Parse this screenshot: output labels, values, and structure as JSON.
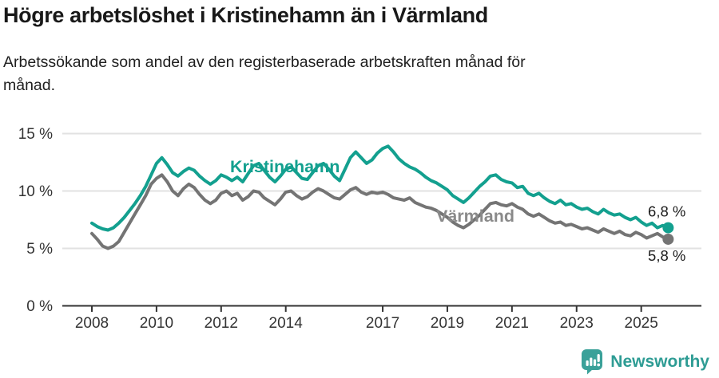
{
  "header": {
    "subtitle_line1": "Arbetssökande som andel av den registerbaserade arbetskraften månad för",
    "subtitle_line2": "månad."
  },
  "footer": {
    "brand": "Newsworthy",
    "brand_color": "#2e9c94",
    "icon": "newsworthy-bar-chart-bubble-icon",
    "icon_color": "#3aa199"
  },
  "chart_data": {
    "type": "line",
    "title": "Högre arbetslöshet i Kristinehamn än i Värmland",
    "subtitle": "Arbetssökande som andel av den registerbaserade arbetskraften månad för månad.",
    "unit": "%",
    "grid": true,
    "legend_position": "inline",
    "x_start": 2008.0,
    "x_step": 0.166667,
    "x_ticks": [
      2008,
      2010,
      2012,
      2014,
      2017,
      2019,
      2021,
      2023,
      2025
    ],
    "y_ticks": [
      {
        "value": 0,
        "label": "0 %"
      },
      {
        "value": 5,
        "label": "5 %"
      },
      {
        "value": 10,
        "label": "10 %"
      },
      {
        "value": 15,
        "label": "15 %"
      }
    ],
    "ylim": [
      0,
      16
    ],
    "axis_color": "#333333",
    "grid_color": "#e2e2e2",
    "tick_label_color": "#333333",
    "value_label_color": "#1d1d1d",
    "series": [
      {
        "name": "Värmland",
        "color": "#747474",
        "label_color": "#8a8a8a",
        "end_label": "5,8 %",
        "end_value": 5.8,
        "values": [
          6.3,
          5.8,
          5.2,
          5.0,
          5.2,
          5.6,
          6.4,
          7.2,
          8.0,
          8.8,
          9.6,
          10.6,
          11.1,
          11.4,
          10.8,
          10.0,
          9.6,
          10.2,
          10.6,
          10.3,
          9.7,
          9.2,
          8.9,
          9.2,
          9.8,
          10.0,
          9.6,
          9.8,
          9.2,
          9.5,
          10.0,
          9.9,
          9.4,
          9.1,
          8.8,
          9.3,
          9.9,
          10.0,
          9.6,
          9.3,
          9.5,
          9.9,
          10.2,
          10.0,
          9.7,
          9.4,
          9.3,
          9.7,
          10.1,
          10.3,
          9.9,
          9.7,
          9.9,
          9.8,
          9.9,
          9.7,
          9.4,
          9.3,
          9.2,
          9.4,
          9.0,
          8.8,
          8.6,
          8.5,
          8.3,
          8.0,
          7.7,
          7.3,
          7.0,
          6.8,
          7.1,
          7.5,
          7.9,
          8.4,
          8.9,
          9.0,
          8.8,
          8.7,
          8.9,
          8.6,
          8.4,
          8.0,
          7.8,
          8.0,
          7.7,
          7.4,
          7.2,
          7.3,
          7.0,
          7.1,
          6.9,
          6.7,
          6.8,
          6.6,
          6.4,
          6.7,
          6.5,
          6.3,
          6.5,
          6.2,
          6.1,
          6.4,
          6.2,
          5.9,
          6.1,
          6.3,
          6.0,
          5.8
        ]
      },
      {
        "name": "Kristinehamn",
        "color": "#13a08f",
        "label_color": "#13a08f",
        "end_label": "6,8 %",
        "end_value": 6.8,
        "values": [
          7.2,
          6.9,
          6.7,
          6.6,
          6.8,
          7.2,
          7.7,
          8.3,
          8.9,
          9.6,
          10.4,
          11.4,
          12.4,
          12.9,
          12.3,
          11.6,
          11.3,
          11.7,
          12.0,
          11.8,
          11.3,
          10.9,
          10.6,
          10.9,
          11.4,
          11.2,
          10.9,
          11.2,
          10.8,
          11.5,
          12.2,
          12.4,
          11.8,
          11.2,
          10.8,
          11.3,
          11.9,
          12.1,
          11.6,
          11.1,
          11.0,
          11.6,
          12.2,
          12.4,
          11.9,
          11.3,
          10.9,
          11.9,
          12.9,
          13.4,
          12.9,
          12.4,
          12.7,
          13.3,
          13.7,
          13.9,
          13.4,
          12.8,
          12.4,
          12.1,
          11.9,
          11.6,
          11.2,
          10.9,
          10.7,
          10.4,
          10.1,
          9.6,
          9.3,
          9.0,
          9.4,
          9.9,
          10.4,
          10.8,
          11.3,
          11.4,
          11.0,
          10.8,
          10.7,
          10.3,
          10.4,
          9.8,
          9.6,
          9.8,
          9.4,
          9.1,
          8.9,
          9.2,
          8.8,
          8.9,
          8.6,
          8.4,
          8.5,
          8.2,
          8.0,
          8.4,
          8.1,
          7.9,
          8.0,
          7.7,
          7.5,
          7.7,
          7.3,
          7.0,
          7.2,
          6.8,
          7.0,
          6.8
        ]
      }
    ]
  }
}
